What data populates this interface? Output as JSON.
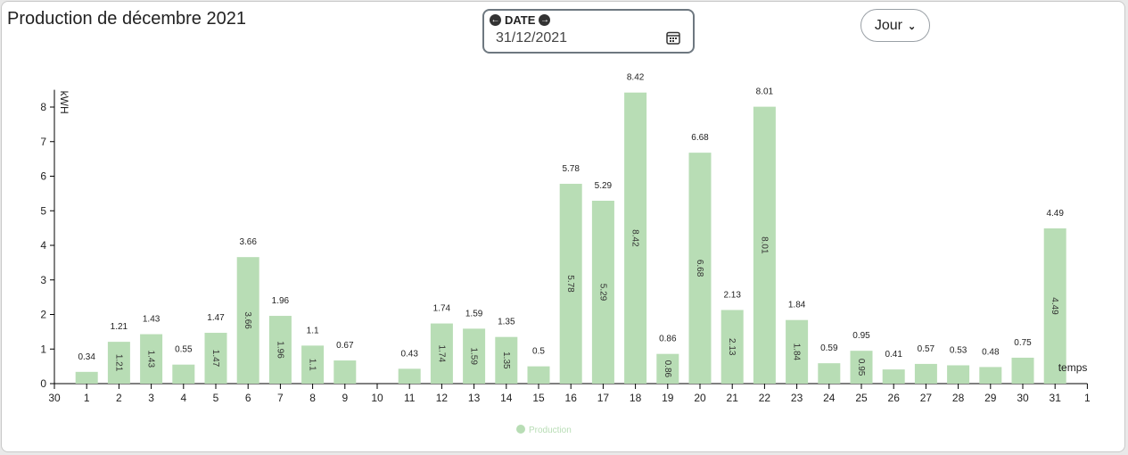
{
  "page": {
    "title": "Production de décembre 2021"
  },
  "date_picker": {
    "label": "DATE",
    "value": "31/12/2021",
    "prev_icon": "arrow-left-circle-icon",
    "next_icon": "arrow-right-circle-icon",
    "calendar_icon": "calendar-icon"
  },
  "period_select": {
    "value": "Jour",
    "icon": "chevron-down-icon"
  },
  "colors": {
    "bar": "#b8ddb5",
    "axis": "#000000"
  },
  "chart_data": {
    "type": "bar",
    "categories": [
      "1",
      "2",
      "3",
      "4",
      "5",
      "6",
      "7",
      "8",
      "9",
      "10",
      "11",
      "12",
      "13",
      "14",
      "15",
      "16",
      "17",
      "18",
      "19",
      "20",
      "21",
      "22",
      "23",
      "24",
      "25",
      "26",
      "27",
      "28",
      "29",
      "30",
      "31"
    ],
    "x_tick_labels": [
      "30",
      "1",
      "2",
      "3",
      "4",
      "5",
      "6",
      "7",
      "8",
      "9",
      "10",
      "11",
      "12",
      "13",
      "14",
      "15",
      "16",
      "17",
      "18",
      "19",
      "20",
      "21",
      "22",
      "23",
      "24",
      "25",
      "26",
      "27",
      "28",
      "29",
      "30",
      "31",
      "1"
    ],
    "series": [
      {
        "name": "Production",
        "values": [
          0.34,
          1.21,
          1.43,
          0.55,
          1.47,
          3.66,
          1.96,
          1.1,
          0.67,
          null,
          0.43,
          1.74,
          1.59,
          1.35,
          0.5,
          5.78,
          5.29,
          8.42,
          0.86,
          6.68,
          2.13,
          8.01,
          1.84,
          0.59,
          0.95,
          0.41,
          0.57,
          0.53,
          0.48,
          0.75,
          4.49
        ]
      }
    ],
    "ylabel": "kWH",
    "xlabel": "temps",
    "ylim": [
      0,
      8.5
    ],
    "y_ticks": [
      0,
      1,
      2,
      3,
      4,
      5,
      6,
      7,
      8
    ],
    "grid": false,
    "legend_position": "bottom-center",
    "show_inner_labels": true
  }
}
